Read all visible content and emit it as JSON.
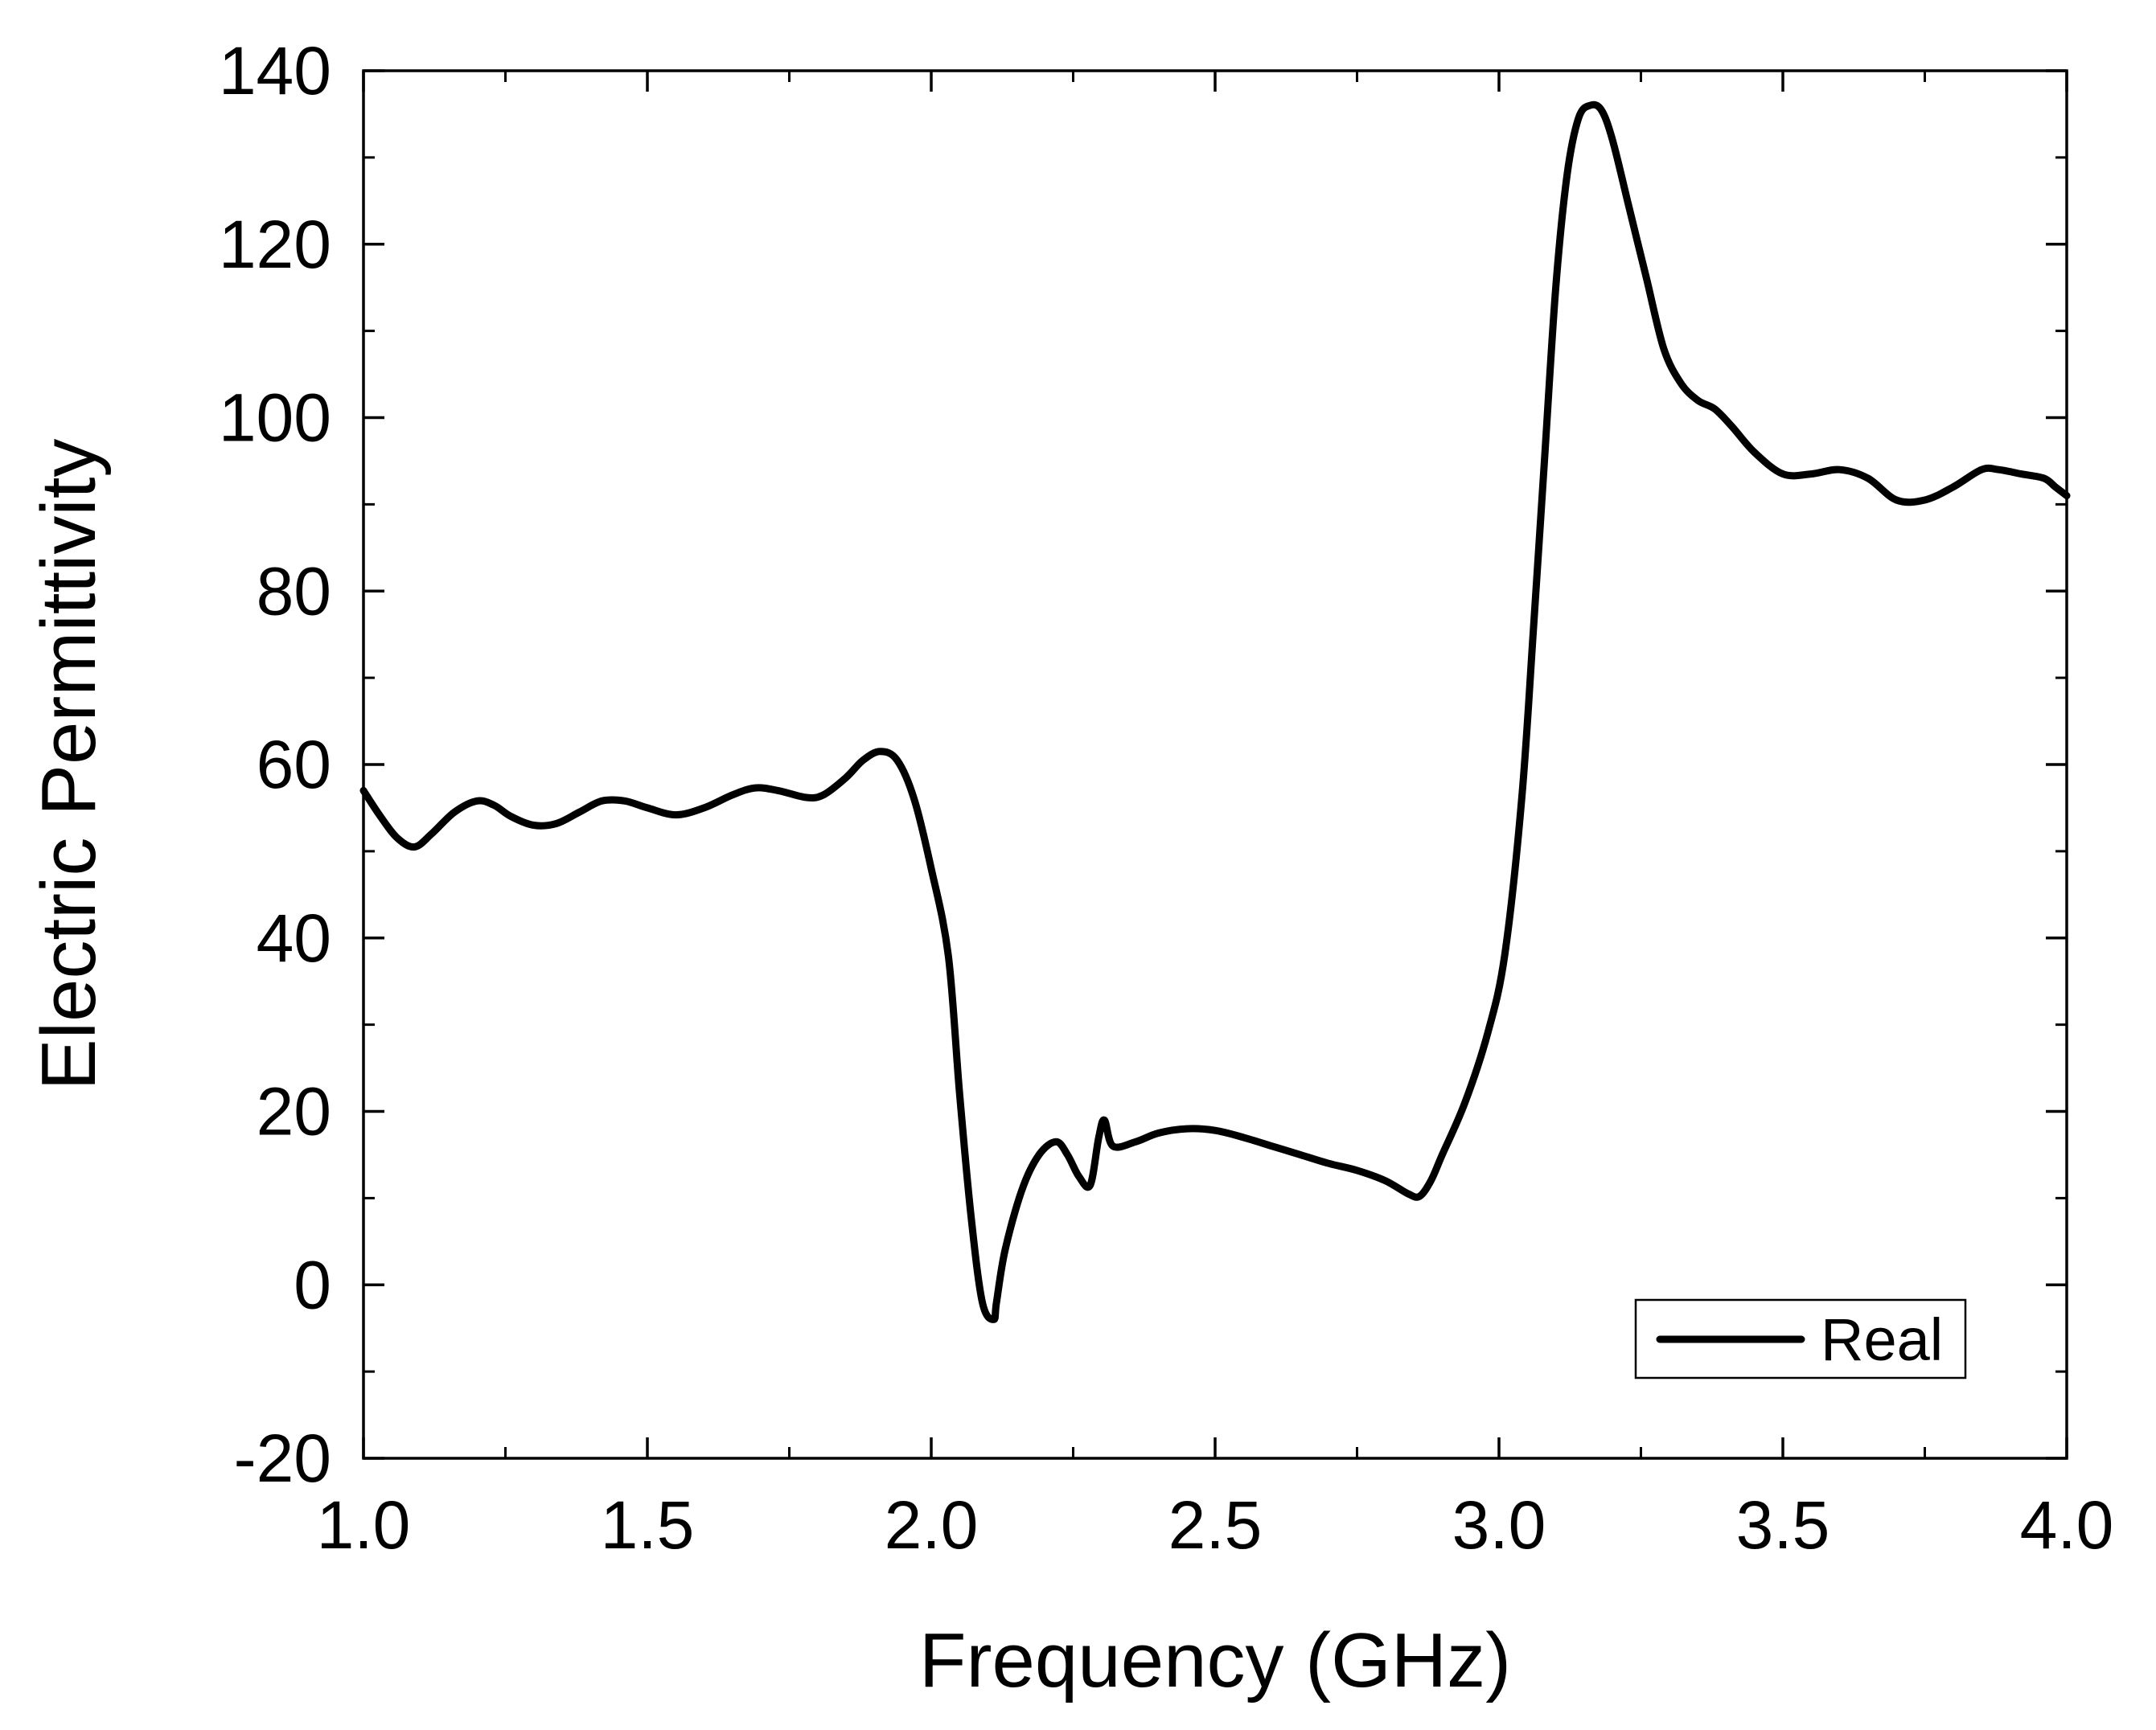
{
  "chart_data": {
    "type": "line",
    "title": "",
    "xlabel": "Frequency (GHz)",
    "ylabel": "Electric Permittivity",
    "xlim": [
      1.0,
      4.0
    ],
    "ylim": [
      -20,
      140
    ],
    "x_ticks": [
      1.0,
      1.5,
      2.0,
      2.5,
      3.0,
      3.5,
      4.0
    ],
    "x_tick_labels": [
      "1.0",
      "1.5",
      "2.0",
      "2.5",
      "3.0",
      "3.5",
      "4.0"
    ],
    "y_ticks": [
      -20,
      0,
      20,
      40,
      60,
      80,
      100,
      120,
      140
    ],
    "y_tick_labels": [
      "-20",
      "0",
      "20",
      "40",
      "60",
      "80",
      "100",
      "120",
      "140"
    ],
    "x_minor_step": 0.25,
    "y_minor_step": 10,
    "grid": false,
    "legend_position": "bottom-right",
    "series": [
      {
        "name": "Real",
        "color": "#000000",
        "x": [
          1.0,
          1.03,
          1.06,
          1.09,
          1.12,
          1.16,
          1.2,
          1.23,
          1.26,
          1.3,
          1.34,
          1.38,
          1.42,
          1.46,
          1.5,
          1.55,
          1.6,
          1.65,
          1.69,
          1.73,
          1.78,
          1.81,
          1.85,
          1.88,
          1.91,
          1.94,
          1.97,
          2.0,
          2.03,
          2.05,
          2.07,
          2.09,
          2.11,
          2.115,
          2.13,
          2.16,
          2.19,
          2.22,
          2.24,
          2.26,
          2.28,
          2.295,
          2.305,
          2.32,
          2.36,
          2.4,
          2.45,
          2.5,
          2.55,
          2.6,
          2.65,
          2.7,
          2.75,
          2.8,
          2.84,
          2.86,
          2.88,
          2.9,
          2.94,
          2.98,
          3.01,
          3.04,
          3.06,
          3.08,
          3.1,
          3.12,
          3.14,
          3.16,
          3.18,
          3.2,
          3.23,
          3.26,
          3.29,
          3.32,
          3.35,
          3.38,
          3.41,
          3.45,
          3.5,
          3.55,
          3.6,
          3.65,
          3.7,
          3.75,
          3.8,
          3.85,
          3.88,
          3.92,
          3.96,
          3.98,
          4.0
        ],
        "y": [
          57,
          54,
          51.5,
          50.5,
          52,
          54.5,
          55.8,
          55.3,
          54,
          53,
          53.2,
          54.5,
          55.8,
          55.8,
          55,
          54.2,
          55,
          56.5,
          57.3,
          57,
          56.2,
          56.5,
          58.5,
          60.5,
          61.5,
          60.5,
          56,
          48,
          38,
          22,
          8,
          -2,
          -4,
          -2,
          4,
          11,
          15,
          16.5,
          15,
          12.5,
          11.5,
          17,
          19,
          16,
          16.5,
          17.5,
          18,
          17.8,
          17,
          16,
          15,
          14,
          13.2,
          12,
          10.5,
          10.2,
          12,
          15,
          21,
          29,
          38,
          56,
          75,
          95,
          115,
          128,
          134.5,
          136,
          135.5,
          132,
          124,
          116,
          108,
          104,
          102,
          101,
          99,
          96,
          93.5,
          93.5,
          94,
          93,
          90.5,
          90.5,
          92,
          94,
          94,
          93.5,
          93,
          92,
          91
        ]
      }
    ]
  }
}
